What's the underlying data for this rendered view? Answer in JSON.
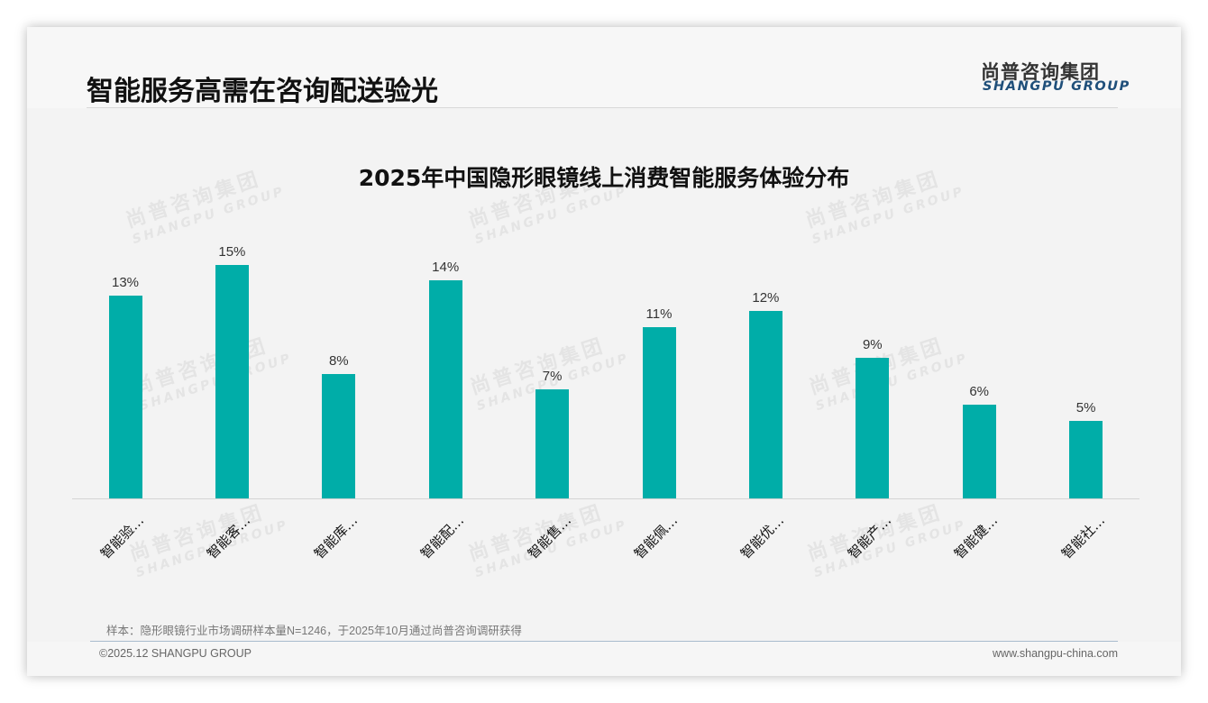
{
  "header": {
    "title": "智能服务高需在咨询配送验光",
    "logo_cn": "尚普咨询集团",
    "logo_en": "SHANGPU GROUP"
  },
  "watermark": {
    "cn": "尚普咨询集团",
    "en": "SHANGPU GROUP"
  },
  "footer": {
    "source": "样本：隐形眼镜行业市场调研样本量N=1246，于2025年10月通过尚普咨询调研获得",
    "copyright": "©2025.12 SHANGPU GROUP",
    "website": "www.shangpu-china.com"
  },
  "colors": {
    "bar": "#00ada8",
    "logo_en": "#1f4f7a",
    "footer_rule": "#a9bccd"
  },
  "chart_data": {
    "type": "bar",
    "title": "2025年中国隐形眼镜线上消费智能服务体验分布",
    "xlabel": "",
    "ylabel": "",
    "ylim": [
      0,
      16
    ],
    "grid": false,
    "legend": null,
    "categories": [
      "智能验…",
      "智能客…",
      "智能库…",
      "智能配…",
      "智能售…",
      "智能佩…",
      "智能优…",
      "智能产…",
      "智能健…",
      "智能社…"
    ],
    "values": [
      13,
      15,
      8,
      14,
      7,
      11,
      12,
      9,
      6,
      5
    ],
    "value_labels": [
      "13%",
      "15%",
      "8%",
      "14%",
      "7%",
      "11%",
      "12%",
      "9%",
      "6%",
      "5%"
    ]
  }
}
